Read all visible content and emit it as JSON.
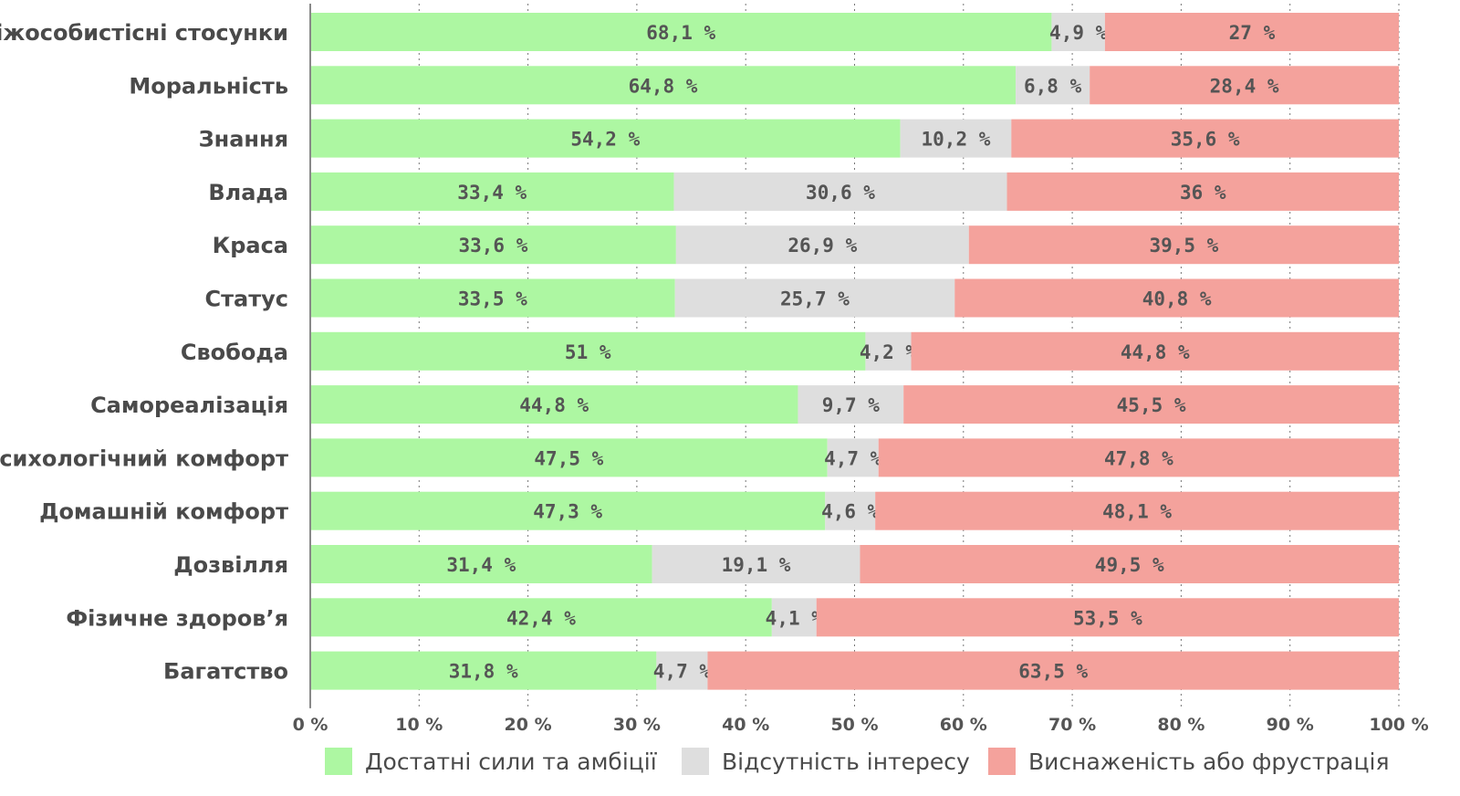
{
  "chart_data": {
    "type": "bar",
    "orientation": "horizontal",
    "stacked": true,
    "title": "",
    "xlabel": "",
    "ylabel": "",
    "xlim": [
      0,
      100
    ],
    "grid": true,
    "legend_position": "bottom",
    "x_ticks": [
      "0 %",
      "10 %",
      "20 %",
      "30 %",
      "40 %",
      "50 %",
      "60 %",
      "70 %",
      "80 %",
      "90 %",
      "100 %"
    ],
    "x_tick_values": [
      0,
      10,
      20,
      30,
      40,
      50,
      60,
      70,
      80,
      90,
      100
    ],
    "categories": [
      "Міжособистісні стосунки",
      "Моральність",
      "Знання",
      "Влада",
      "Краса",
      "Статус",
      "Свобода",
      "Самореалізація",
      "Психологічний комфорт",
      "Домашній комфорт",
      "Дозвілля",
      "Фізичне здоров’я",
      "Багатство"
    ],
    "series": [
      {
        "name": "Достатні сили та амбіції",
        "color": "#adf7a2",
        "values": [
          68.1,
          64.8,
          54.2,
          33.4,
          33.6,
          33.5,
          51,
          44.8,
          47.5,
          47.3,
          31.4,
          42.4,
          31.8
        ],
        "labels": [
          "68,1 %",
          "64,8 %",
          "54,2 %",
          "33,4 %",
          "33,6 %",
          "33,5 %",
          "51 %",
          "44,8 %",
          "47,5 %",
          "47,3 %",
          "31,4 %",
          "42,4 %",
          "31,8 %"
        ]
      },
      {
        "name": "Відсутність інтересу",
        "color": "#dedede",
        "values": [
          4.9,
          6.8,
          10.2,
          30.6,
          26.9,
          25.7,
          4.2,
          9.7,
          4.7,
          4.6,
          19.1,
          4.1,
          4.7
        ],
        "labels": [
          "4,9 %",
          "6,8 %",
          "10,2 %",
          "30,6 %",
          "26,9 %",
          "25,7 %",
          "4,2 %",
          "9,7 %",
          "4,7 %",
          "4,6 %",
          "19,1 %",
          "4,1 %",
          "4,7 %"
        ]
      },
      {
        "name": "Виснаженість або фрустрація",
        "color": "#f4a29c",
        "values": [
          27,
          28.4,
          35.6,
          36,
          39.5,
          40.8,
          44.8,
          45.5,
          47.8,
          48.1,
          49.5,
          53.5,
          63.5
        ],
        "labels": [
          "27 %",
          "28,4 %",
          "35,6 %",
          "36 %",
          "39,5 %",
          "40,8 %",
          "44,8 %",
          "45,5 %",
          "47,8 %",
          "48,1 %",
          "49,5 %",
          "53,5 %",
          "63,5 %"
        ]
      }
    ]
  }
}
